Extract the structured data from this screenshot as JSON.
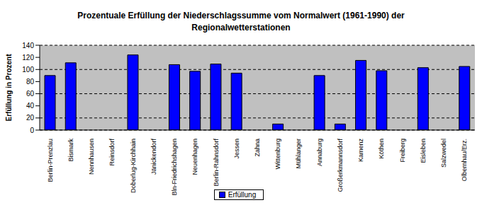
{
  "chart_data": {
    "type": "bar",
    "title": "Prozentuale Erfüllung der Niederschlagssumme vom Normalwert (1961-1990) der Regionalwetterstationen",
    "y_label": "Erfüllung in Prozent",
    "categories": [
      "Berlin-Prenzlau",
      "Bismark",
      "Nennhausen",
      "Reinsdorf",
      "Doberlug-Kirchhain",
      "Jänickendorf",
      "Bln-Friedrichshagen",
      "Neuenhagen",
      "Berlin-Rahnsdorf",
      "Jessen",
      "Zahna",
      "Wittenburg",
      "Mühlanger",
      "Annaburg",
      "Großerkmannsdorf",
      "Kamenz",
      "Köthen",
      "Freiberg",
      "Eisleben",
      "Salzwedel",
      "Olbernhau/Erz."
    ],
    "series": [
      {
        "name": "Erfüllung",
        "color": "#0000ff",
        "values": [
          90,
          111,
          null,
          null,
          124,
          null,
          108,
          97,
          109,
          94,
          null,
          10,
          null,
          90,
          10,
          115,
          98,
          null,
          103,
          null,
          105
        ]
      }
    ],
    "ylim": [
      0,
      140
    ],
    "yticks": [
      0,
      20,
      40,
      60,
      80,
      100,
      120,
      140
    ],
    "grid": true,
    "legend": "bottom"
  }
}
